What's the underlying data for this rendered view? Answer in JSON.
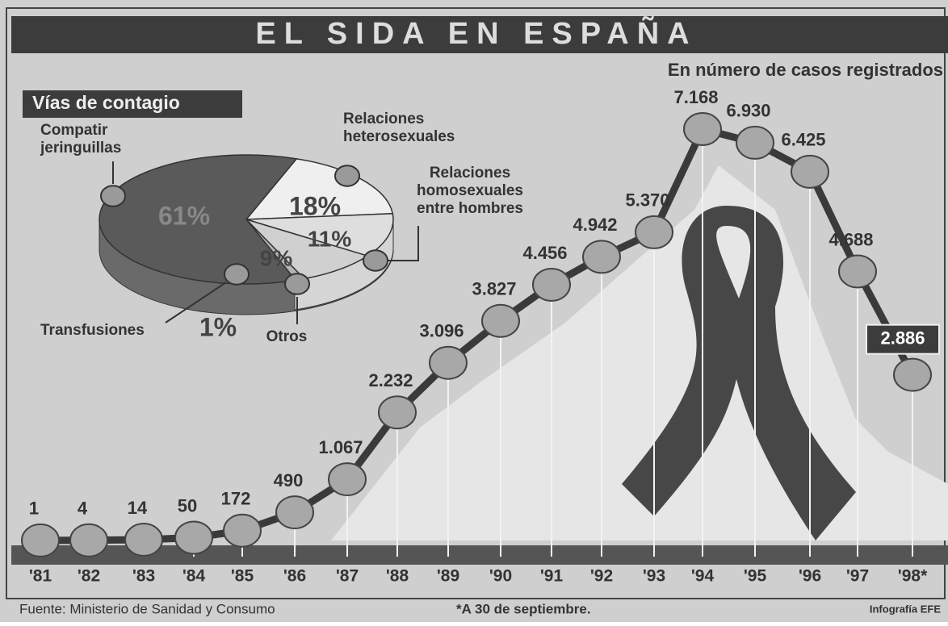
{
  "header": {
    "title": "EL SIDA EN ESPAÑA",
    "subtitle": "En número de casos registrados"
  },
  "chart_data": [
    {
      "type": "line",
      "categories": [
        "'81",
        "'82",
        "'83",
        "'84",
        "'85",
        "'86",
        "'87",
        "'88",
        "'89",
        "'90",
        "'91",
        "'92",
        "'93",
        "'94",
        "'95",
        "'96",
        "'97",
        "'98*"
      ],
      "values": [
        1,
        4,
        14,
        50,
        172,
        490,
        1067,
        2232,
        3096,
        3827,
        4456,
        4942,
        5370,
        7168,
        6930,
        6425,
        4688,
        2886
      ],
      "value_labels": [
        "1",
        "4",
        "14",
        "50",
        "172",
        "490",
        "1.067",
        "2.232",
        "3.096",
        "3.827",
        "4.456",
        "4.942",
        "5.370",
        "7.168",
        "6.930",
        "6.425",
        "4.688",
        "2.886"
      ],
      "color": "#3a3a3a"
    },
    {
      "type": "pie",
      "title": "Vías de contagio",
      "categories": [
        [
          "Relaciones",
          "heterosexuales"
        ],
        [
          "Relaciones",
          "homosexuales",
          "entre hombres"
        ],
        [
          "Otros"
        ],
        [
          "Transfusiones"
        ],
        [
          "Compatir",
          "jeringuillas"
        ]
      ],
      "values": [
        18,
        11,
        9,
        1,
        61
      ],
      "value_labels": [
        "18%",
        "11%",
        "9%",
        "1%",
        "61%"
      ],
      "colors": [
        "#efefef",
        "#dedede",
        "#d0d0d0",
        "#b5b5b5",
        "#5a5a5a"
      ]
    }
  ],
  "footer": {
    "source": "Fuente: Ministerio de Sanidad y Consumo",
    "note": "*A 30 de septiembre.",
    "credit": "Infografía EFE"
  }
}
